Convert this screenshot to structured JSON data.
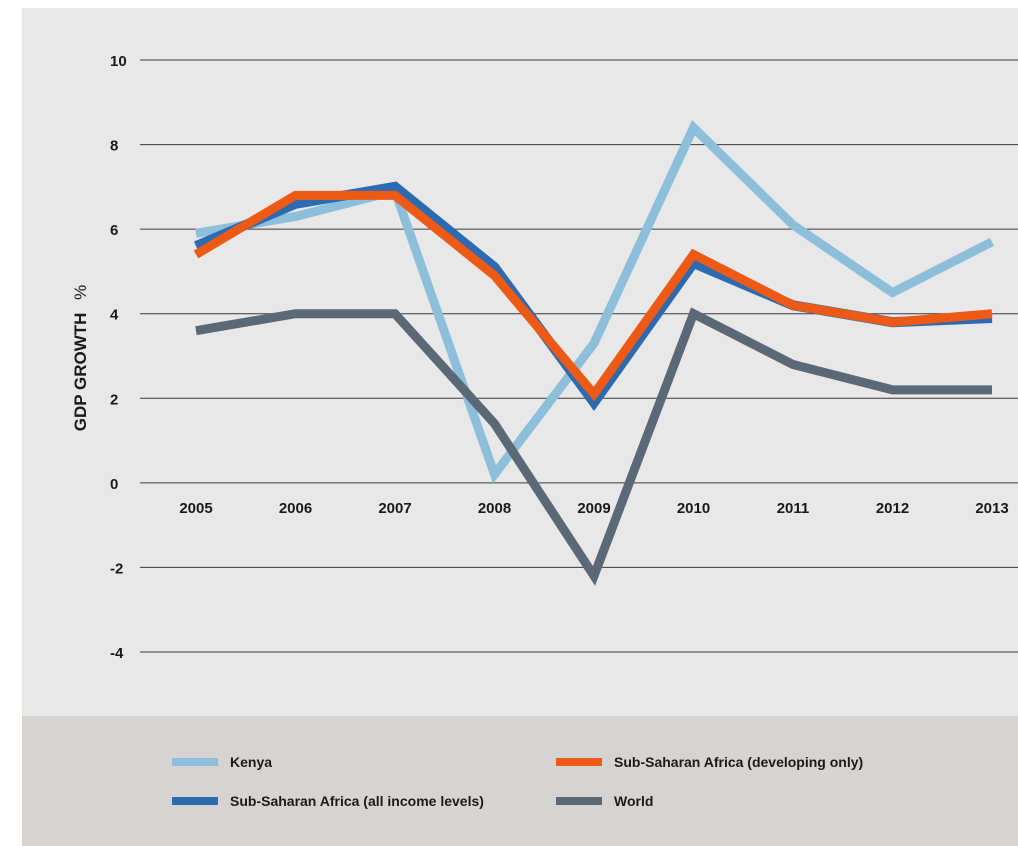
{
  "chart_data": {
    "type": "line",
    "title": "",
    "xlabel": "",
    "ylabel": "GDP GROWTH",
    "ylabel_unit": "%",
    "x": [
      "2005",
      "2006",
      "2007",
      "2008",
      "2009",
      "2010",
      "2011",
      "2012",
      "2013"
    ],
    "y_ticks": [
      "10",
      "8",
      "6",
      "4",
      "2",
      "0",
      "-2",
      "-4"
    ],
    "ylim": [
      -4,
      10
    ],
    "grid": true,
    "legend_position": "bottom",
    "series": [
      {
        "name": "Kenya",
        "color": "#8dbfda",
        "values": [
          5.9,
          6.3,
          6.9,
          0.2,
          3.3,
          8.4,
          6.1,
          4.5,
          5.7
        ]
      },
      {
        "name": "Sub-Saharan Africa (all income levels)",
        "color": "#2c6ab1",
        "values": [
          5.6,
          6.6,
          7.0,
          5.1,
          1.9,
          5.2,
          4.2,
          3.8,
          3.9
        ]
      },
      {
        "name": "Sub-Saharan Africa (developing only)",
        "color": "#ec5a16",
        "values": [
          5.4,
          6.8,
          6.8,
          4.9,
          2.1,
          5.4,
          4.2,
          3.8,
          4.0
        ]
      },
      {
        "name": "World",
        "color": "#5b6876",
        "values": [
          3.6,
          4.0,
          4.0,
          1.4,
          -2.2,
          4.0,
          2.8,
          2.2,
          2.2
        ]
      }
    ]
  }
}
